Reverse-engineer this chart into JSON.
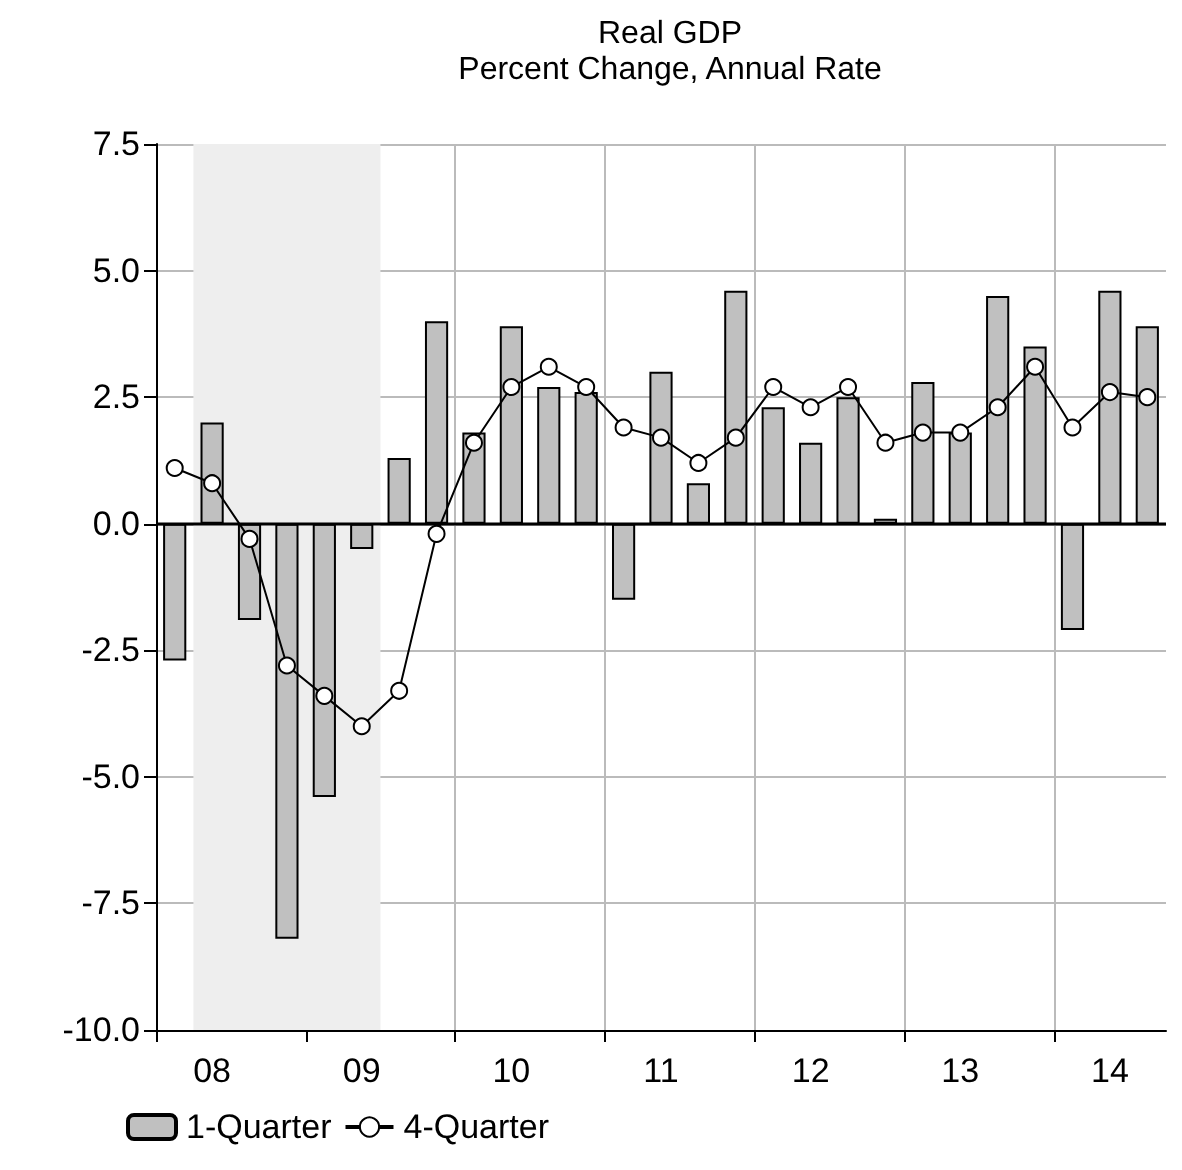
{
  "chart_data": {
    "type": "bar",
    "title": "Real GDP",
    "subtitle": "Percent Change, Annual Rate",
    "categories": [
      null,
      "08",
      null,
      null,
      null,
      "09",
      null,
      null,
      null,
      "10",
      null,
      null,
      null,
      "11",
      null,
      null,
      null,
      "12",
      null,
      null,
      null,
      "13",
      null,
      null,
      null,
      "14",
      null
    ],
    "series": [
      {
        "name": "1-Quarter",
        "color": "#c0c0c0",
        "values": [
          -2.7,
          2.0,
          -1.9,
          -8.2,
          -5.4,
          -0.5,
          1.3,
          4.0,
          1.8,
          3.9,
          2.7,
          2.6,
          -1.5,
          3.0,
          0.8,
          4.6,
          2.3,
          1.6,
          2.5,
          0.1,
          2.8,
          1.8,
          4.5,
          3.5,
          -2.1,
          4.6,
          3.9
        ]
      },
      {
        "name": "4-Quarter",
        "type": "line",
        "color": "#000000",
        "marker": "circle",
        "values": [
          1.1,
          0.8,
          -0.3,
          -2.8,
          -3.4,
          -4.0,
          -3.3,
          -0.2,
          1.6,
          2.7,
          3.1,
          2.7,
          1.9,
          1.7,
          1.2,
          1.7,
          2.7,
          2.3,
          2.7,
          1.6,
          1.8,
          1.8,
          2.3,
          3.1,
          1.9,
          2.6,
          2.5
        ]
      }
    ],
    "ylim": [
      -10,
      7.5
    ],
    "yticks": [
      {
        "value": -10,
        "label": "-10.0"
      },
      {
        "value": -7.5,
        "label": "-7.5"
      },
      {
        "value": -5,
        "label": "-5.0"
      },
      {
        "value": -2.5,
        "label": "-2.5"
      },
      {
        "value": 0,
        "label": "0.0"
      },
      {
        "value": 2.5,
        "label": "2.5"
      },
      {
        "value": 5,
        "label": "5.0"
      },
      {
        "value": 7.5,
        "label": "7.5"
      }
    ],
    "bands": [
      {
        "axis": "x",
        "from": "08",
        "to": "09",
        "color": "#eeeeee"
      }
    ],
    "ref_lines": [
      {
        "axis": "y",
        "value": 0,
        "color": "#000000"
      }
    ],
    "grid": true,
    "legend": "bottom left"
  }
}
